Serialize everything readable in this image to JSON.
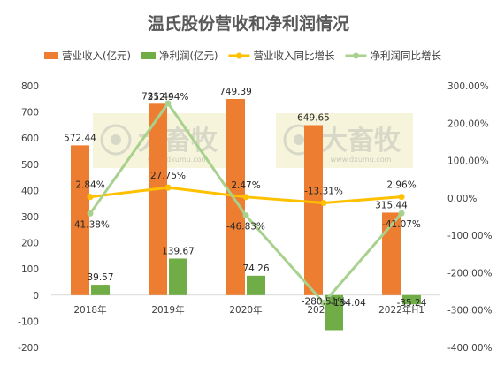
{
  "chart_data": {
    "type": "bar+line",
    "title": "温氏股份营收和净利润情况",
    "categories": [
      "2018年",
      "2019年",
      "2020年",
      "2021年",
      "2022年H1"
    ],
    "series": [
      {
        "name": "营业收入(亿元)",
        "kind": "bar",
        "axis": "left",
        "color": "#ed7d31",
        "values": [
          572.44,
          731.44,
          749.39,
          649.65,
          315.44
        ],
        "labels": [
          "572.44",
          "731.44",
          "749.39",
          "649.65",
          "315.44"
        ]
      },
      {
        "name": "净利润(亿元)",
        "kind": "bar",
        "axis": "left",
        "color": "#70ad47",
        "values": [
          39.57,
          139.67,
          74.26,
          -134.04,
          -35.24
        ],
        "labels": [
          "39.57",
          "139.67",
          "74.26",
          "-134.04",
          "-35.24"
        ]
      },
      {
        "name": "营业收入同比增长",
        "kind": "line",
        "axis": "right",
        "color": "#ffc000",
        "values": [
          2.84,
          27.75,
          2.47,
          -13.31,
          2.96
        ],
        "labels": [
          "2.84%",
          "27.75%",
          "2.47%",
          "-13.31%",
          "2.96%"
        ]
      },
      {
        "name": "净利润同比增长",
        "kind": "line",
        "axis": "right",
        "color": "#a9d18e",
        "values": [
          -41.38,
          252.94,
          -46.83,
          -280.51,
          -41.07
        ],
        "labels": [
          "-41.38%",
          "252.94%",
          "-46.83%",
          "-280.51%",
          "-41.07%"
        ]
      }
    ],
    "y_left": {
      "min": -200,
      "max": 800,
      "step": 100,
      "ticks": [
        "800",
        "700",
        "600",
        "500",
        "400",
        "300",
        "200",
        "100",
        "0",
        "-100",
        "-200"
      ]
    },
    "y_right": {
      "min": -400,
      "max": 300,
      "step": 100,
      "ticks": [
        "300.00%",
        "200.00%",
        "100.00%",
        "0.00%",
        "-100.00%",
        "-200.00%",
        "-300.00%",
        "-400.00%"
      ]
    },
    "grid": false,
    "legend_position": "top",
    "watermark": {
      "text": "大畜牧",
      "subtext": "www.dxumu.com"
    }
  }
}
